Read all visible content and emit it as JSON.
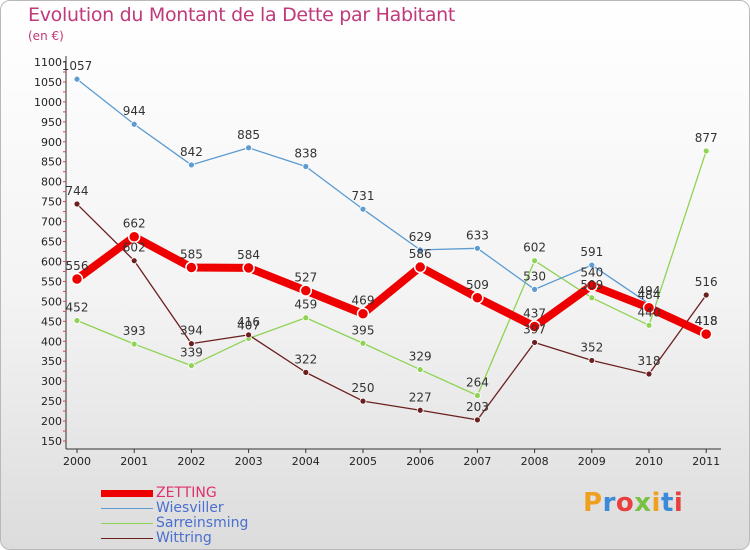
{
  "title": "Evolution du Montant de la Dette par Habitant",
  "unit": "(en €)",
  "logo": "Proxiti",
  "chart_data": {
    "type": "line",
    "title": "Evolution du Montant de la Dette par Habitant",
    "subtitle": "(en €)",
    "xlabel": "",
    "ylabel": "",
    "ylim": [
      150,
      1100
    ],
    "yticks": [
      150,
      200,
      250,
      300,
      350,
      400,
      450,
      500,
      550,
      600,
      650,
      700,
      750,
      800,
      850,
      900,
      950,
      1000,
      1050,
      1100
    ],
    "grid": false,
    "legend_position": "bottom-left",
    "categories": [
      "2000",
      "2001",
      "2002",
      "2003",
      "2004",
      "2005",
      "2006",
      "2007",
      "2008",
      "2009",
      "2010",
      "2011"
    ],
    "series": [
      {
        "name": "ZETTING",
        "color": "#ee0000",
        "values": [
          556,
          662,
          585,
          584,
          527,
          469,
          586,
          509,
          437,
          540,
          484,
          418
        ]
      },
      {
        "name": "Wiesviller",
        "color": "#5d9bd0",
        "values": [
          1057,
          944,
          842,
          885,
          838,
          731,
          629,
          633,
          530,
          591,
          494,
          418
        ]
      },
      {
        "name": "Sarreinsming",
        "color": "#8ed354",
        "values": [
          452,
          393,
          339,
          407,
          459,
          395,
          329,
          264,
          602,
          509,
          440,
          877
        ]
      },
      {
        "name": "Wittring",
        "color": "#6b1f1f",
        "values": [
          744,
          602,
          394,
          416,
          322,
          250,
          227,
          203,
          397,
          352,
          318,
          516
        ]
      }
    ]
  }
}
